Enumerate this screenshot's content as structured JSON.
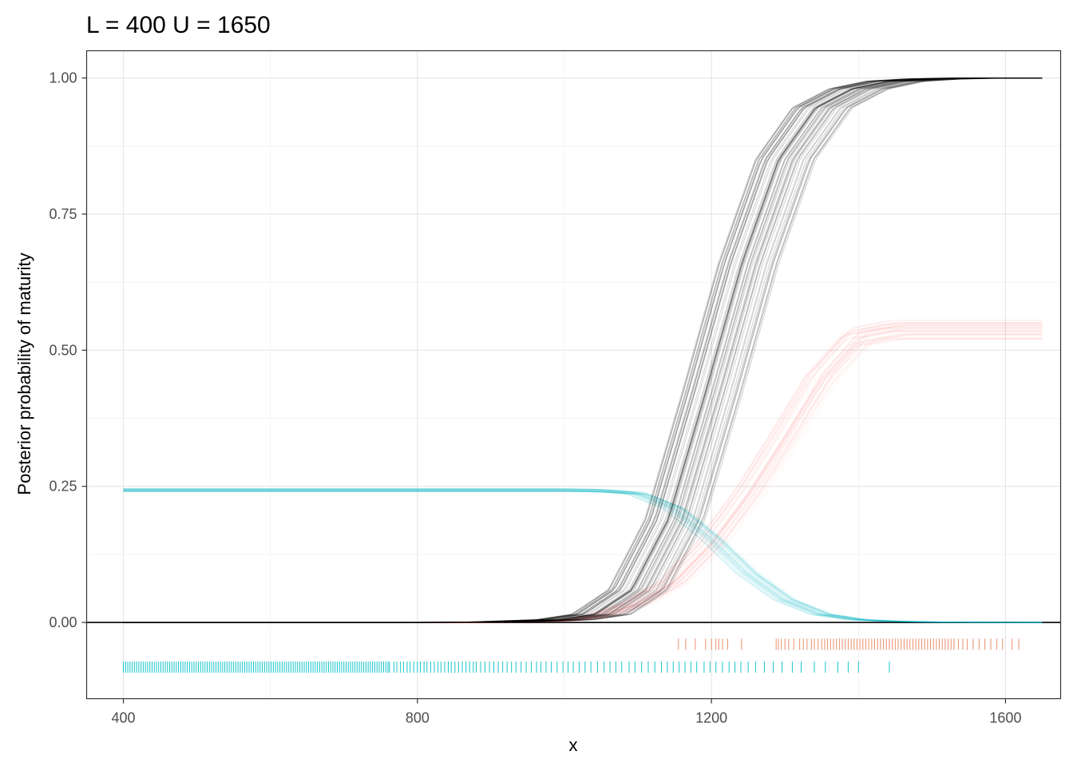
{
  "chart_data": {
    "type": "line",
    "title": "L = 400 U = 1650",
    "xlabel": "x",
    "ylabel": "Posterior probability of maturity",
    "xlim": [
      350,
      1675
    ],
    "ylim": [
      -0.14,
      1.05
    ],
    "x_ticks": [
      400,
      800,
      1200,
      1600
    ],
    "x_tick_labels": [
      "400",
      "800",
      "1200",
      "1600"
    ],
    "y_ticks": [
      0.0,
      0.25,
      0.5,
      0.75,
      1.0
    ],
    "y_tick_labels": [
      "0.00",
      "0.25",
      "0.50",
      "0.75",
      "1.00"
    ],
    "grid": true,
    "legend": "none",
    "x": [
      400,
      600,
      800,
      900,
      1000,
      1050,
      1100,
      1150,
      1200,
      1250,
      1300,
      1350,
      1400,
      1450,
      1500,
      1550,
      1600,
      1650
    ],
    "series": [
      {
        "role": "posterior draws",
        "color": "#000000",
        "draws": 60,
        "values": [
          0.0,
          0.0,
          0.0,
          0.0005,
          0.005,
          0.015,
          0.06,
          0.19,
          0.42,
          0.66,
          0.85,
          0.945,
          0.98,
          0.994,
          0.998,
          0.9995,
          1.0,
          1.0
        ]
      },
      {
        "role": "posterior draws",
        "color": "#F8766D",
        "draws": 40,
        "values": [
          0.0,
          0.0,
          0.0,
          0.0,
          0.003,
          0.012,
          0.035,
          0.075,
          0.145,
          0.235,
          0.34,
          0.45,
          0.525,
          0.538,
          0.538,
          0.538,
          0.538,
          0.538
        ]
      },
      {
        "role": "posterior draws",
        "color": "#00BFC4",
        "draws": 40,
        "values": [
          0.243,
          0.243,
          0.243,
          0.243,
          0.243,
          0.242,
          0.237,
          0.21,
          0.155,
          0.09,
          0.042,
          0.015,
          0.005,
          0.002,
          0.0008,
          0.0003,
          0.0001,
          0.0
        ]
      }
    ],
    "rug": [
      {
        "color": "#E8825A",
        "y": -0.04,
        "x": [
          1155,
          1165,
          1178,
          1192,
          1200,
          1206,
          1210,
          1215,
          1222,
          1241,
          1288,
          1291,
          1295,
          1300,
          1305,
          1312,
          1320,
          1325,
          1330,
          1336,
          1340,
          1345,
          1350,
          1354,
          1358,
          1362,
          1366,
          1370,
          1374,
          1378,
          1382,
          1386,
          1390,
          1394,
          1398,
          1402,
          1406,
          1410,
          1414,
          1418,
          1422,
          1426,
          1430,
          1434,
          1438,
          1442,
          1446,
          1450,
          1454,
          1458,
          1462,
          1466,
          1470,
          1474,
          1478,
          1482,
          1486,
          1490,
          1494,
          1498,
          1502,
          1506,
          1510,
          1514,
          1518,
          1522,
          1526,
          1530,
          1536,
          1542,
          1548,
          1556,
          1564,
          1572,
          1580,
          1588,
          1596,
          1609,
          1618
        ]
      },
      {
        "color": "#00BFC4",
        "y": -0.082,
        "x_dense_from": 400,
        "x_dense_to": 760,
        "x_dense_step": 3,
        "x": [
          762,
          768,
          772,
          777,
          781,
          786,
          790,
          795,
          800,
          804,
          809,
          813,
          818,
          823,
          828,
          832,
          837,
          842,
          846,
          851,
          856,
          861,
          866,
          871,
          876,
          880,
          886,
          892,
          898,
          904,
          910,
          916,
          922,
          928,
          934,
          941,
          948,
          955,
          962,
          968,
          975,
          982,
          990,
          998,
          1005,
          1012,
          1020,
          1028,
          1036,
          1045,
          1054,
          1062,
          1070,
          1078,
          1088,
          1096,
          1105,
          1114,
          1123,
          1132,
          1140,
          1148,
          1156,
          1164,
          1172,
          1180,
          1190,
          1198,
          1206,
          1215,
          1224,
          1232,
          1240,
          1250,
          1260,
          1272,
          1284,
          1296,
          1310,
          1322,
          1340,
          1355,
          1372,
          1386,
          1400,
          1442
        ]
      }
    ]
  }
}
